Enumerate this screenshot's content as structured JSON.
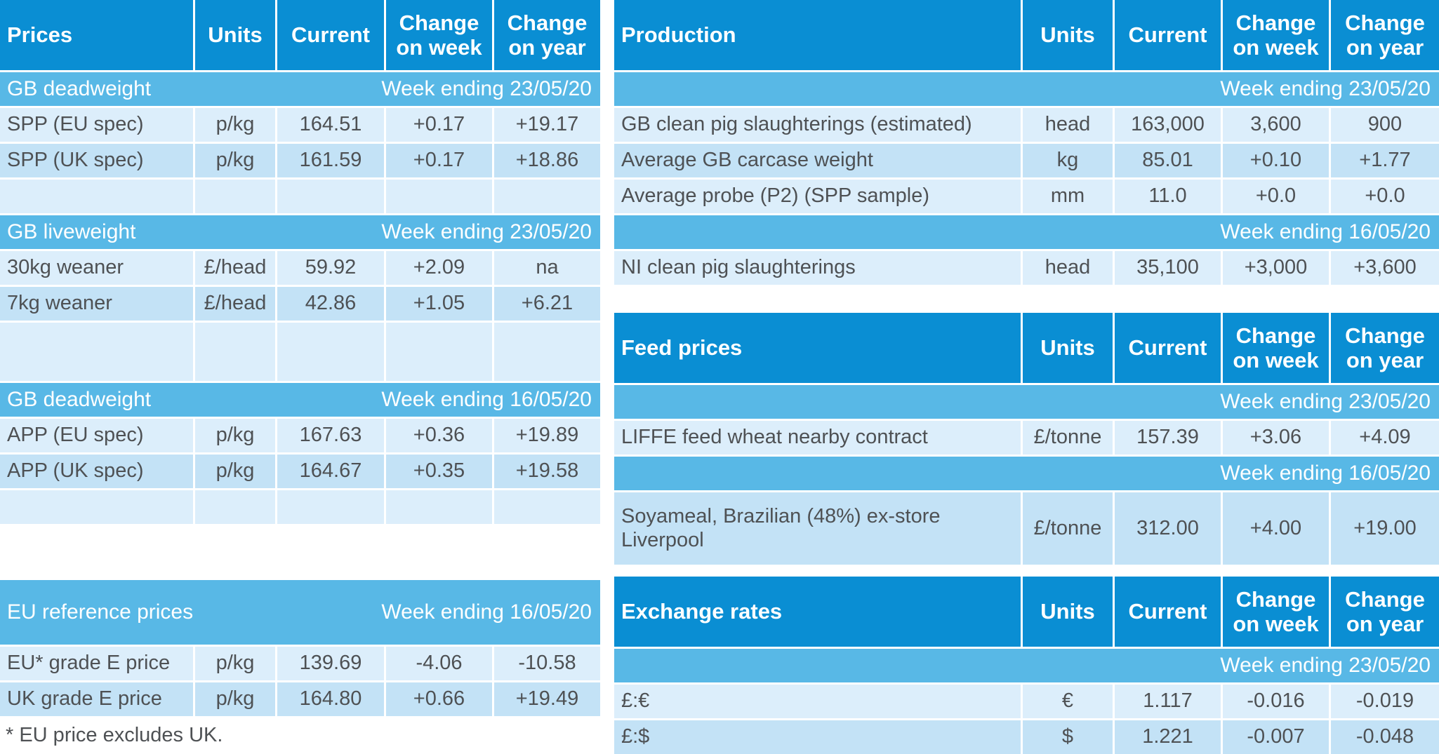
{
  "colors": {
    "header": "#0a8ed3",
    "band": "#58b8e6",
    "light": "#dceefb",
    "mid": "#c3e2f6",
    "text": "#4e5154"
  },
  "tables": {
    "prices": {
      "columns": [
        "Prices",
        "Units",
        "Current",
        "Change on week",
        "Change on year"
      ],
      "sections": [
        {
          "label": "GB deadweight",
          "week": "Week ending 23/05/20",
          "rows": [
            {
              "cells": [
                "SPP (EU spec)",
                "p/kg",
                "164.51",
                "+0.17",
                "+19.17"
              ]
            },
            {
              "cells": [
                "SPP (UK spec)",
                "p/kg",
                "161.59",
                "+0.17",
                "+18.86"
              ]
            }
          ]
        },
        {
          "label": "GB liveweight",
          "week": "Week ending 23/05/20",
          "rows": [
            {
              "cells": [
                "30kg weaner",
                "£/head",
                "59.92",
                "+2.09",
                "na"
              ]
            },
            {
              "cells": [
                "7kg weaner",
                "£/head",
                "42.86",
                "+1.05",
                "+6.21"
              ]
            }
          ]
        },
        {
          "label": "GB deadweight",
          "week": "Week ending 16/05/20",
          "rows": [
            {
              "cells": [
                "APP (EU spec)",
                "p/kg",
                "167.63",
                "+0.36",
                "+19.89"
              ]
            },
            {
              "cells": [
                "APP (UK spec)",
                "p/kg",
                "164.67",
                "+0.35",
                "+19.58"
              ]
            }
          ]
        }
      ]
    },
    "eu_reference": {
      "label": "EU reference prices",
      "week": "Week ending 16/05/20",
      "rows": [
        {
          "cells": [
            "EU* grade E price",
            "p/kg",
            "139.69",
            "-4.06",
            "-10.58"
          ]
        },
        {
          "cells": [
            "UK grade E price",
            "p/kg",
            "164.80",
            "+0.66",
            "+19.49"
          ]
        }
      ],
      "footnote": "* EU price excludes UK."
    },
    "production": {
      "columns": [
        "Production",
        "Units",
        "Current",
        "Change on week",
        "Change on year"
      ],
      "sections": [
        {
          "week": "Week ending 23/05/20",
          "rows": [
            {
              "cells": [
                "GB clean pig slaughterings (estimated)",
                "head",
                "163,000",
                "3,600",
                "900"
              ]
            },
            {
              "cells": [
                "Average GB carcase weight",
                "kg",
                "85.01",
                "+0.10",
                "+1.77"
              ]
            },
            {
              "cells": [
                "Average probe (P2) (SPP sample)",
                "mm",
                "11.0",
                "+0.0",
                "+0.0"
              ]
            }
          ]
        },
        {
          "week": "Week ending 16/05/20",
          "rows": [
            {
              "cells": [
                "NI clean pig slaughterings",
                "head",
                "35,100",
                "+3,000",
                "+3,600"
              ]
            }
          ]
        }
      ]
    },
    "feed": {
      "columns": [
        "Feed prices",
        "Units",
        "Current",
        "Change on week",
        "Change on year"
      ],
      "sections": [
        {
          "week": "Week ending 23/05/20",
          "rows": [
            {
              "cells": [
                "LIFFE feed wheat nearby contract",
                "£/tonne",
                "157.39",
                "+3.06",
                "+4.09"
              ]
            }
          ]
        },
        {
          "week": "Week ending 16/05/20",
          "rows": [
            {
              "cells": [
                "Soyameal, Brazilian (48%) ex-store Liverpool",
                "£/tonne",
                "312.00",
                "+4.00",
                "+19.00"
              ]
            }
          ]
        }
      ]
    },
    "exchange": {
      "columns": [
        "Exchange rates",
        "Units",
        "Current",
        "Change on week",
        "Change on year"
      ],
      "sections": [
        {
          "week": "Week ending 23/05/20",
          "rows": [
            {
              "cells": [
                "£:€",
                "€",
                "1.117",
                "-0.016",
                "-0.019"
              ]
            },
            {
              "cells": [
                "£:$",
                "$",
                "1.221",
                "-0.007",
                "-0.048"
              ]
            }
          ]
        }
      ]
    }
  }
}
